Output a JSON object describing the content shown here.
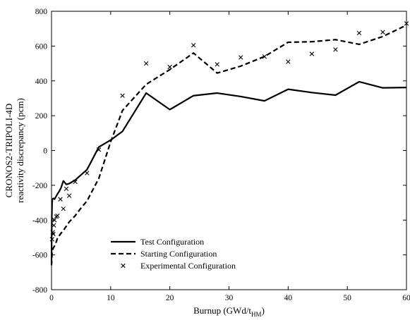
{
  "chart_data": {
    "type": "line",
    "xlabel_main": "Burnup (GWd/t",
    "xlabel_sub": "HM",
    "xlabel_close": ")",
    "ylabel_line1": "CRONOS2-TRIPOLI-4D",
    "ylabel_line2": "reactivity discrepancy (pcm)",
    "xlim": [
      0,
      60
    ],
    "ylim": [
      -800,
      800
    ],
    "xticks": [
      0,
      10,
      20,
      30,
      40,
      50,
      60
    ],
    "yticks": [
      -800,
      -600,
      -400,
      -200,
      0,
      200,
      400,
      600,
      800
    ],
    "legend_position": "bottom-left",
    "series": [
      {
        "name": "Test Configuration",
        "style": "solid",
        "x": [
          0,
          0.05,
          0.1,
          0.15,
          0.3,
          0.5,
          0.8,
          1.0,
          1.3,
          1.6,
          2.0,
          2.5,
          3.0,
          4.0,
          5.0,
          6.0,
          8.0,
          10.0,
          12.0,
          16.0,
          20.0,
          24.0,
          28.0,
          32.0,
          36.0,
          40.0,
          44.0,
          48.0,
          52.0,
          56.0,
          60.0
        ],
        "y": [
          -650,
          -380,
          -300,
          -280,
          -275,
          -280,
          -262,
          -250,
          -235,
          -215,
          -175,
          -195,
          -190,
          -170,
          -140,
          -110,
          20,
          60,
          110,
          330,
          235,
          315,
          330,
          310,
          285,
          352,
          333,
          318,
          395,
          360,
          362
        ]
      },
      {
        "name": "Starting Configuration",
        "style": "dashed",
        "x": [
          0,
          0.05,
          0.1,
          0.3,
          0.5,
          0.8,
          1.0,
          1.5,
          2.0,
          3.0,
          4.0,
          5.0,
          6.0,
          8.0,
          10.0,
          12.0,
          16.0,
          20.0,
          24.0,
          28.0,
          32.0,
          36.0,
          40.0,
          44.0,
          48.0,
          52.0,
          56.0,
          60.0
        ],
        "y": [
          -660,
          -620,
          -580,
          -560,
          -550,
          -525,
          -505,
          -480,
          -460,
          -410,
          -375,
          -330,
          -290,
          -160,
          50,
          230,
          380,
          465,
          560,
          445,
          485,
          540,
          622,
          625,
          637,
          610,
          655,
          720
        ]
      },
      {
        "name": "Experimental Configuration",
        "style": "markers",
        "marker": "x",
        "x": [
          0.1,
          0.2,
          0.3,
          0.4,
          0.5,
          0.8,
          1.0,
          1.5,
          2.0,
          2.5,
          3.0,
          4.0,
          6.0,
          8.0,
          12.0,
          16.0,
          20.0,
          24.0,
          28.0,
          32.0,
          36.0,
          40.0,
          44.0,
          48.0,
          52.0,
          56.0,
          60.0
        ],
        "y": [
          -510,
          -470,
          -480,
          -430,
          -400,
          -380,
          -375,
          -280,
          -335,
          -220,
          -260,
          -180,
          -130,
          5,
          315,
          500,
          480,
          605,
          495,
          535,
          540,
          510,
          555,
          580,
          675,
          680,
          730
        ]
      }
    ]
  }
}
